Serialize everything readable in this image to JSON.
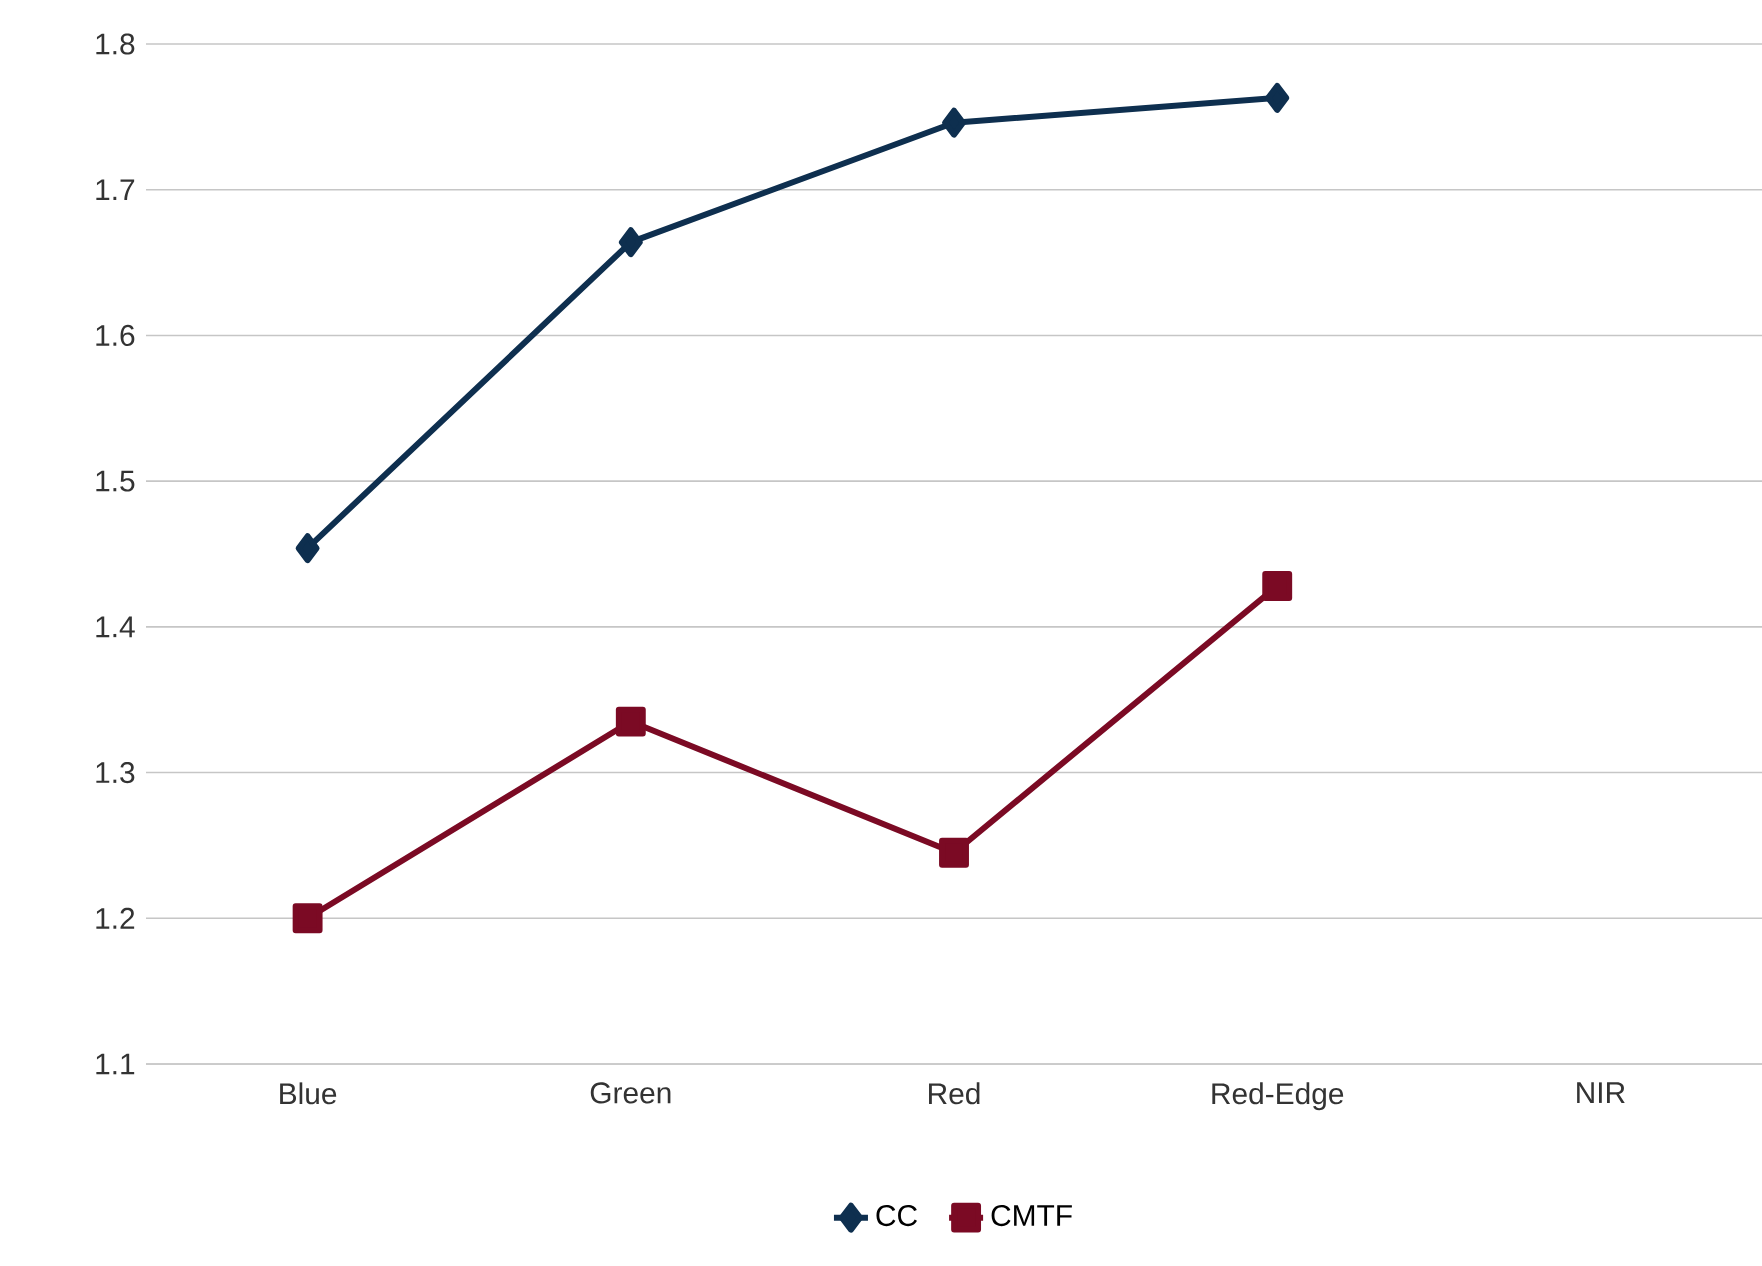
{
  "chart_data": {
    "type": "line",
    "categories": [
      "Blue",
      "Green",
      "Red",
      "Red-Edge",
      "NIR"
    ],
    "series": [
      {
        "name": "CC",
        "color": "#0e2f4f",
        "marker": "diamond",
        "values": [
          1.454,
          1.664,
          1.746,
          1.763,
          null
        ]
      },
      {
        "name": "CMTF",
        "color": "#7b0a24",
        "marker": "square",
        "values": [
          1.2,
          1.335,
          1.245,
          1.428,
          null
        ]
      }
    ],
    "ylim": [
      1.1,
      1.8
    ],
    "yticks": [
      1.1,
      1.2,
      1.3,
      1.4,
      1.5,
      1.6,
      1.7,
      1.8
    ],
    "grid": "y",
    "legend": "bottom",
    "line_style": "solid"
  }
}
